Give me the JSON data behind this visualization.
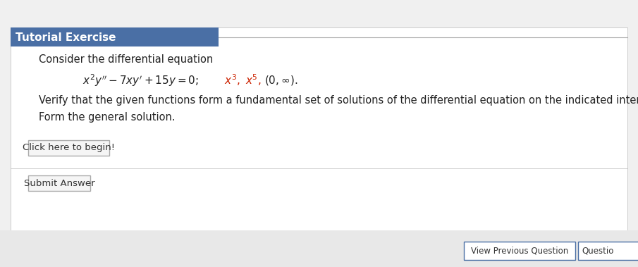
{
  "background_color": "#f0f0f0",
  "main_bg": "#ffffff",
  "header_bg": "#4a6fa5",
  "header_text": "Tutorial Exercise",
  "header_text_color": "#ffffff",
  "header_fontsize": 11,
  "line1": "Consider the differential equation",
  "line1_color": "#222222",
  "line1_fontsize": 10.5,
  "equation_color": "#222222",
  "equation_fontsize": 11,
  "solutions_color": "#cc2200",
  "line3": "Verify that the given functions form a fundamental set of solutions of the differential equation on the indicated interval.",
  "line3_color": "#222222",
  "line3_fontsize": 10.5,
  "line4": "Form the general solution.",
  "line4_color": "#222222",
  "line4_fontsize": 10.5,
  "btn1_text": "Click here to begin!",
  "btn2_text": "Submit Answer",
  "btn_fontsize": 9.5,
  "btn_bg": "#f5f5f5",
  "btn_border": "#aaaaaa",
  "bottom_btn_text": "View Previous Question",
  "bottom_btn2_text": "Questio",
  "separator_color": "#bbbbbb",
  "top_line_color": "#aaaaaa",
  "bottom_bar_color": "#e8e8e8",
  "bottom_btn_border": "#4a6fa5"
}
